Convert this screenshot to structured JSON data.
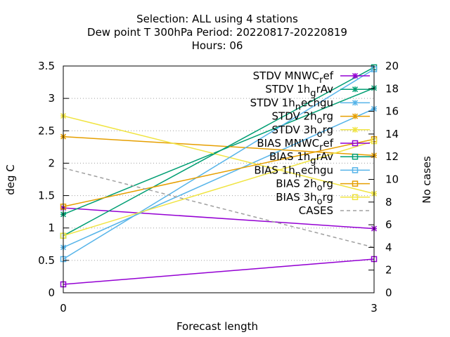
{
  "chart_data": {
    "type": "line",
    "title_lines": [
      "Selection: ALL using     4 stations",
      "Dew point T 300hPa   Period: 20220817-20220819",
      "Hours:  06"
    ],
    "xlabel": "Forecast length",
    "ylabel": "deg C",
    "y2label": "No cases",
    "x": [
      0,
      3
    ],
    "xlim": [
      0,
      3
    ],
    "ylim": [
      0,
      3.5
    ],
    "y2lim": [
      0,
      20
    ],
    "x_ticks": [
      0,
      3
    ],
    "y_ticks": [
      "0",
      "0.5",
      "1",
      "1.5",
      "2",
      "2.5",
      "3",
      "3.5"
    ],
    "y2_ticks": [
      "0",
      "2",
      "4",
      "6",
      "8",
      "10",
      "12",
      "14",
      "16",
      "18",
      "20"
    ],
    "grid": true,
    "legend_position": "top-right",
    "series": [
      {
        "name": "STDV MNWC_ref",
        "name_parts": [
          "STDV MNWC",
          "r",
          "ef"
        ],
        "color": "#9400d3",
        "marker": "x",
        "axis": "y",
        "values": [
          1.31,
          0.99
        ]
      },
      {
        "name": "STDV 1h_grAv",
        "name_parts": [
          "STDV 1h",
          "g",
          "rAv"
        ],
        "color": "#009e73",
        "marker": "x",
        "axis": "y",
        "values": [
          1.21,
          3.16
        ]
      },
      {
        "name": "STDV 1h_nechgu",
        "name_parts": [
          "STDV 1h",
          "n",
          "echgu"
        ],
        "color": "#56b4e9",
        "marker": "x",
        "axis": "y",
        "values": [
          0.7,
          2.84
        ]
      },
      {
        "name": "STDV 2h_org",
        "name_parts": [
          "STDV 2h",
          "o",
          "rg"
        ],
        "color": "#e69f00",
        "marker": "x",
        "axis": "y",
        "values": [
          2.41,
          2.12
        ]
      },
      {
        "name": "STDV 3h_org",
        "name_parts": [
          "STDV 3h",
          "o",
          "rg"
        ],
        "color": "#f0e442",
        "marker": "x",
        "axis": "y",
        "values": [
          2.73,
          1.53
        ]
      },
      {
        "name": "BIAS MNWC_ref",
        "name_parts": [
          "BIAS MNWC",
          "r",
          "ef"
        ],
        "color": "#9400d3",
        "marker": "square",
        "axis": "y",
        "values": [
          0.13,
          0.52
        ]
      },
      {
        "name": "BIAS 1h_grAv",
        "name_parts": [
          "BIAS 1h",
          "g",
          "rAv"
        ],
        "color": "#009e73",
        "marker": "square",
        "axis": "y",
        "values": [
          0.88,
          3.48
        ]
      },
      {
        "name": "BIAS 1h_nechgu",
        "name_parts": [
          "BIAS 1h",
          "n",
          "echgu"
        ],
        "color": "#56b4e9",
        "marker": "square",
        "axis": "y",
        "values": [
          0.52,
          3.45
        ]
      },
      {
        "name": "BIAS 2h_org",
        "name_parts": [
          "BIAS 2h",
          "o",
          "rg"
        ],
        "color": "#e69f00",
        "marker": "square",
        "axis": "y",
        "values": [
          1.33,
          2.37
        ]
      },
      {
        "name": "BIAS 3h_org",
        "name_parts": [
          "BIAS 3h",
          "o",
          "rg"
        ],
        "color": "#f0e442",
        "marker": "square",
        "axis": "y",
        "values": [
          0.88,
          2.34
        ]
      },
      {
        "name": "CASES",
        "name_parts": [
          "CASES"
        ],
        "color": "#a0a0a0",
        "marker": "none",
        "dashed": true,
        "axis": "y2",
        "values": [
          11.0,
          4.0
        ]
      }
    ]
  }
}
